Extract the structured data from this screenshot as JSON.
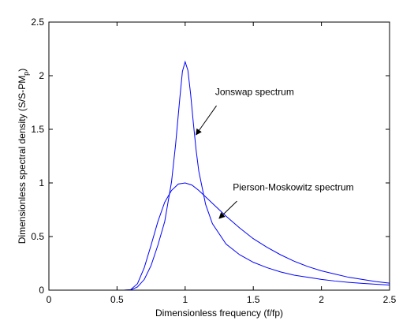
{
  "chart_data": {
    "type": "line",
    "title": "",
    "xlabel": "Dimensionless frequency (f/fp)",
    "ylabel": "Dimensionless spectral density (S/S-PM_p)",
    "ylabel_main": "Dimensionless spectral density (S/S-PM",
    "ylabel_sub": "p",
    "ylabel_end": ")",
    "xlim": [
      0,
      2.5
    ],
    "ylim": [
      0,
      2.5
    ],
    "xticks": [
      "0",
      "0.5",
      "1",
      "1.5",
      "2",
      "2.5"
    ],
    "yticks": [
      "0",
      "0.5",
      "1",
      "1.5",
      "2",
      "2.5"
    ],
    "grid": false,
    "colors": {
      "line": "#0000ff",
      "axes": "#000000",
      "arrow": "#000000"
    },
    "series": [
      {
        "x": [
          0,
          0.55,
          0.6,
          0.65,
          0.7,
          0.75,
          0.8,
          0.85,
          0.9,
          0.93,
          0.96,
          0.98,
          1.0,
          1.02,
          1.04,
          1.06,
          1.08,
          1.1,
          1.15,
          1.2,
          1.3,
          1.4,
          1.5,
          1.6,
          1.7,
          1.8,
          1.9,
          2.0,
          2.1,
          2.2,
          2.3,
          2.4,
          2.5
        ],
        "values": [
          0,
          0,
          0.002,
          0.03,
          0.1,
          0.23,
          0.42,
          0.64,
          1.01,
          1.36,
          1.78,
          2.04,
          2.13,
          2.05,
          1.83,
          1.56,
          1.31,
          1.11,
          0.8,
          0.62,
          0.43,
          0.33,
          0.26,
          0.21,
          0.17,
          0.14,
          0.12,
          0.1,
          0.085,
          0.073,
          0.063,
          0.055,
          0.048
        ]
      },
      {
        "x": [
          0,
          0.55,
          0.6,
          0.65,
          0.7,
          0.75,
          0.8,
          0.85,
          0.9,
          0.95,
          1.0,
          1.05,
          1.1,
          1.2,
          1.3,
          1.4,
          1.5,
          1.6,
          1.7,
          1.8,
          1.9,
          2.0,
          2.1,
          2.2,
          2.3,
          2.4,
          2.5
        ],
        "values": [
          0,
          0,
          0.005,
          0.06,
          0.21,
          0.42,
          0.64,
          0.82,
          0.93,
          0.99,
          1.0,
          0.98,
          0.93,
          0.81,
          0.69,
          0.58,
          0.48,
          0.4,
          0.33,
          0.27,
          0.22,
          0.18,
          0.15,
          0.12,
          0.1,
          0.08,
          0.065
        ]
      }
    ],
    "annotations": [
      {
        "text": "Jonswap spectrum",
        "text_x": 1.22,
        "text_y": 1.82,
        "arrow_from": [
          1.23,
          1.72
        ],
        "arrow_to": [
          1.08,
          1.45
        ]
      },
      {
        "text": "Pierson-Moskowitz spectrum",
        "text_x": 1.35,
        "text_y": 0.93,
        "arrow_from": [
          1.38,
          0.83
        ],
        "arrow_to": [
          1.25,
          0.67
        ]
      }
    ]
  }
}
